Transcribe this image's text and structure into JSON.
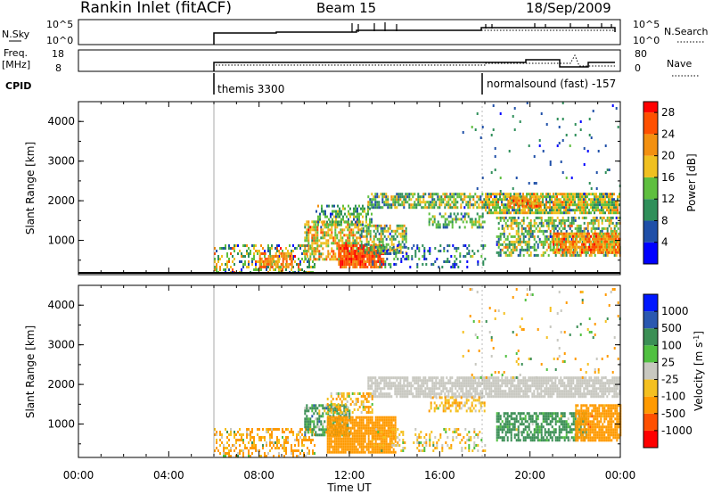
{
  "header": {
    "title": "Rankin Inlet (fitACF)",
    "beam": "Beam 15",
    "date": "18/Sep/2009"
  },
  "summary_panels": {
    "nsky": {
      "label": "N.Sky",
      "ticks": [
        "10^5",
        "10^0"
      ]
    },
    "nsearch": {
      "label": "N.Search",
      "ticks": [
        "10^5",
        "10^0"
      ]
    },
    "freq": {
      "label_line1": "Freq.",
      "label_line2": "[MHz]",
      "ticks": [
        "18",
        "8"
      ]
    },
    "nave": {
      "label": "Nave",
      "ticks": [
        "80",
        "0"
      ]
    },
    "cpid": {
      "label": "CPID",
      "modes": [
        {
          "name": "themis 3300",
          "start_hour": 6
        },
        {
          "name": "normalsound (fast) -157",
          "start_hour": 18
        }
      ]
    }
  },
  "colors": {
    "power": [
      "#0000ff",
      "#1f4fa8",
      "#2f8f5a",
      "#5fbf3f",
      "#f0c020",
      "#f39010",
      "#ff5000",
      "#ff0000"
    ],
    "velocity": [
      "#ff0000",
      "#ff5000",
      "#ff9a00",
      "#f4c020",
      "#c8c8c0",
      "#50c040",
      "#3b8f55",
      "#2a58b0",
      "#0018ff"
    ]
  },
  "chart_data": [
    {
      "type": "heatmap",
      "panel": "power",
      "ylabel": "Slant Range [km]",
      "yticks": [
        "1000",
        "2000",
        "3000",
        "4000"
      ],
      "ylim": [
        180,
        4500
      ],
      "xlim_hours": [
        0,
        24
      ],
      "colorbar": {
        "label": "Power [dB]",
        "ticks": [
          "4",
          "8",
          "12",
          "16",
          "20",
          "24",
          "28"
        ],
        "range": [
          0,
          30
        ]
      },
      "regions": [
        {
          "x0": 6.0,
          "x1": 10.5,
          "y0": 200,
          "y1": 900,
          "v": 14,
          "d": 0.4,
          "sp": 10
        },
        {
          "x0": 8.0,
          "x1": 9.5,
          "y0": 300,
          "y1": 700,
          "v": 22,
          "d": 0.75,
          "sp": 6
        },
        {
          "x0": 10.0,
          "x1": 12.5,
          "y0": 500,
          "y1": 1500,
          "v": 18,
          "d": 0.7,
          "sp": 8
        },
        {
          "x0": 11.5,
          "x1": 13.5,
          "y0": 300,
          "y1": 900,
          "v": 26,
          "d": 0.9,
          "sp": 4
        },
        {
          "x0": 12.5,
          "x1": 14.5,
          "y0": 700,
          "y1": 1400,
          "v": 14,
          "d": 0.6,
          "sp": 8
        },
        {
          "x0": 13.0,
          "x1": 18.0,
          "y0": 300,
          "y1": 900,
          "v": 8,
          "d": 0.25,
          "sp": 6
        },
        {
          "x0": 10.5,
          "x1": 13.0,
          "y0": 1400,
          "y1": 1900,
          "v": 12,
          "d": 0.45,
          "sp": 6
        },
        {
          "x0": 12.8,
          "x1": 18.0,
          "y0": 1800,
          "y1": 2200,
          "v": 14,
          "d": 0.7,
          "sp": 8
        },
        {
          "x0": 15.5,
          "x1": 18.0,
          "y0": 1300,
          "y1": 1700,
          "v": 12,
          "d": 0.45,
          "sp": 6
        },
        {
          "x0": 18.0,
          "x1": 24.0,
          "y0": 1700,
          "y1": 2200,
          "v": 16,
          "d": 0.85,
          "sp": 8
        },
        {
          "x0": 19.0,
          "x1": 20.5,
          "y0": 1850,
          "y1": 2100,
          "v": 22,
          "d": 0.7,
          "sp": 6
        },
        {
          "x0": 18.5,
          "x1": 24.0,
          "y0": 600,
          "y1": 1600,
          "v": 14,
          "d": 0.55,
          "sp": 8
        },
        {
          "x0": 21.0,
          "x1": 24.0,
          "y0": 700,
          "y1": 1200,
          "v": 22,
          "d": 0.85,
          "sp": 6
        },
        {
          "x0": 17.0,
          "x1": 24.0,
          "y0": 2200,
          "y1": 4500,
          "v": 8,
          "d": 0.03,
          "sp": 6
        }
      ]
    },
    {
      "type": "heatmap",
      "panel": "velocity",
      "ylabel": "Slant Range [km]",
      "yticks": [
        "1000",
        "2000",
        "3000",
        "4000"
      ],
      "ylim": [
        180,
        4500
      ],
      "xlim_hours": [
        0,
        24
      ],
      "xticks": [
        "00:00",
        "04:00",
        "08:00",
        "12:00",
        "16:00",
        "20:00",
        "00:00"
      ],
      "xlabel": "Time UT",
      "colorbar": {
        "label": "Velocity [m s^-1]",
        "ticks": [
          "-1000",
          "-500",
          "-100",
          "-25",
          "25",
          "100",
          "500",
          "1000"
        ],
        "range": [
          -1300,
          1300
        ]
      },
      "regions": [
        {
          "x0": 6.0,
          "x1": 10.5,
          "y0": 200,
          "y1": 900,
          "v": -150,
          "d": 0.4,
          "sp": 200
        },
        {
          "x0": 10.0,
          "x1": 12.0,
          "y0": 700,
          "y1": 1500,
          "v": 200,
          "d": 0.65,
          "sp": 300
        },
        {
          "x0": 11.0,
          "x1": 14.0,
          "y0": 300,
          "y1": 1200,
          "v": -250,
          "d": 0.9,
          "sp": 80
        },
        {
          "x0": 13.0,
          "x1": 18.0,
          "y0": 300,
          "y1": 900,
          "v": -50,
          "d": 0.25,
          "sp": 120
        },
        {
          "x0": 12.8,
          "x1": 24.0,
          "y0": 1700,
          "y1": 2200,
          "v": 0,
          "d": 0.8,
          "sp": 15
        },
        {
          "x0": 11.0,
          "x1": 13.0,
          "y0": 1300,
          "y1": 1800,
          "v": -80,
          "d": 0.4,
          "sp": 120
        },
        {
          "x0": 15.5,
          "x1": 18.0,
          "y0": 1300,
          "y1": 1700,
          "v": -60,
          "d": 0.45,
          "sp": 80
        },
        {
          "x0": 18.5,
          "x1": 22.5,
          "y0": 600,
          "y1": 1300,
          "v": 200,
          "d": 0.65,
          "sp": 150
        },
        {
          "x0": 22.0,
          "x1": 24.0,
          "y0": 600,
          "y1": 1500,
          "v": -300,
          "d": 0.8,
          "sp": 150
        },
        {
          "x0": 17.0,
          "x1": 24.0,
          "y0": 2200,
          "y1": 4500,
          "v": -50,
          "d": 0.03,
          "sp": 200
        }
      ]
    }
  ]
}
